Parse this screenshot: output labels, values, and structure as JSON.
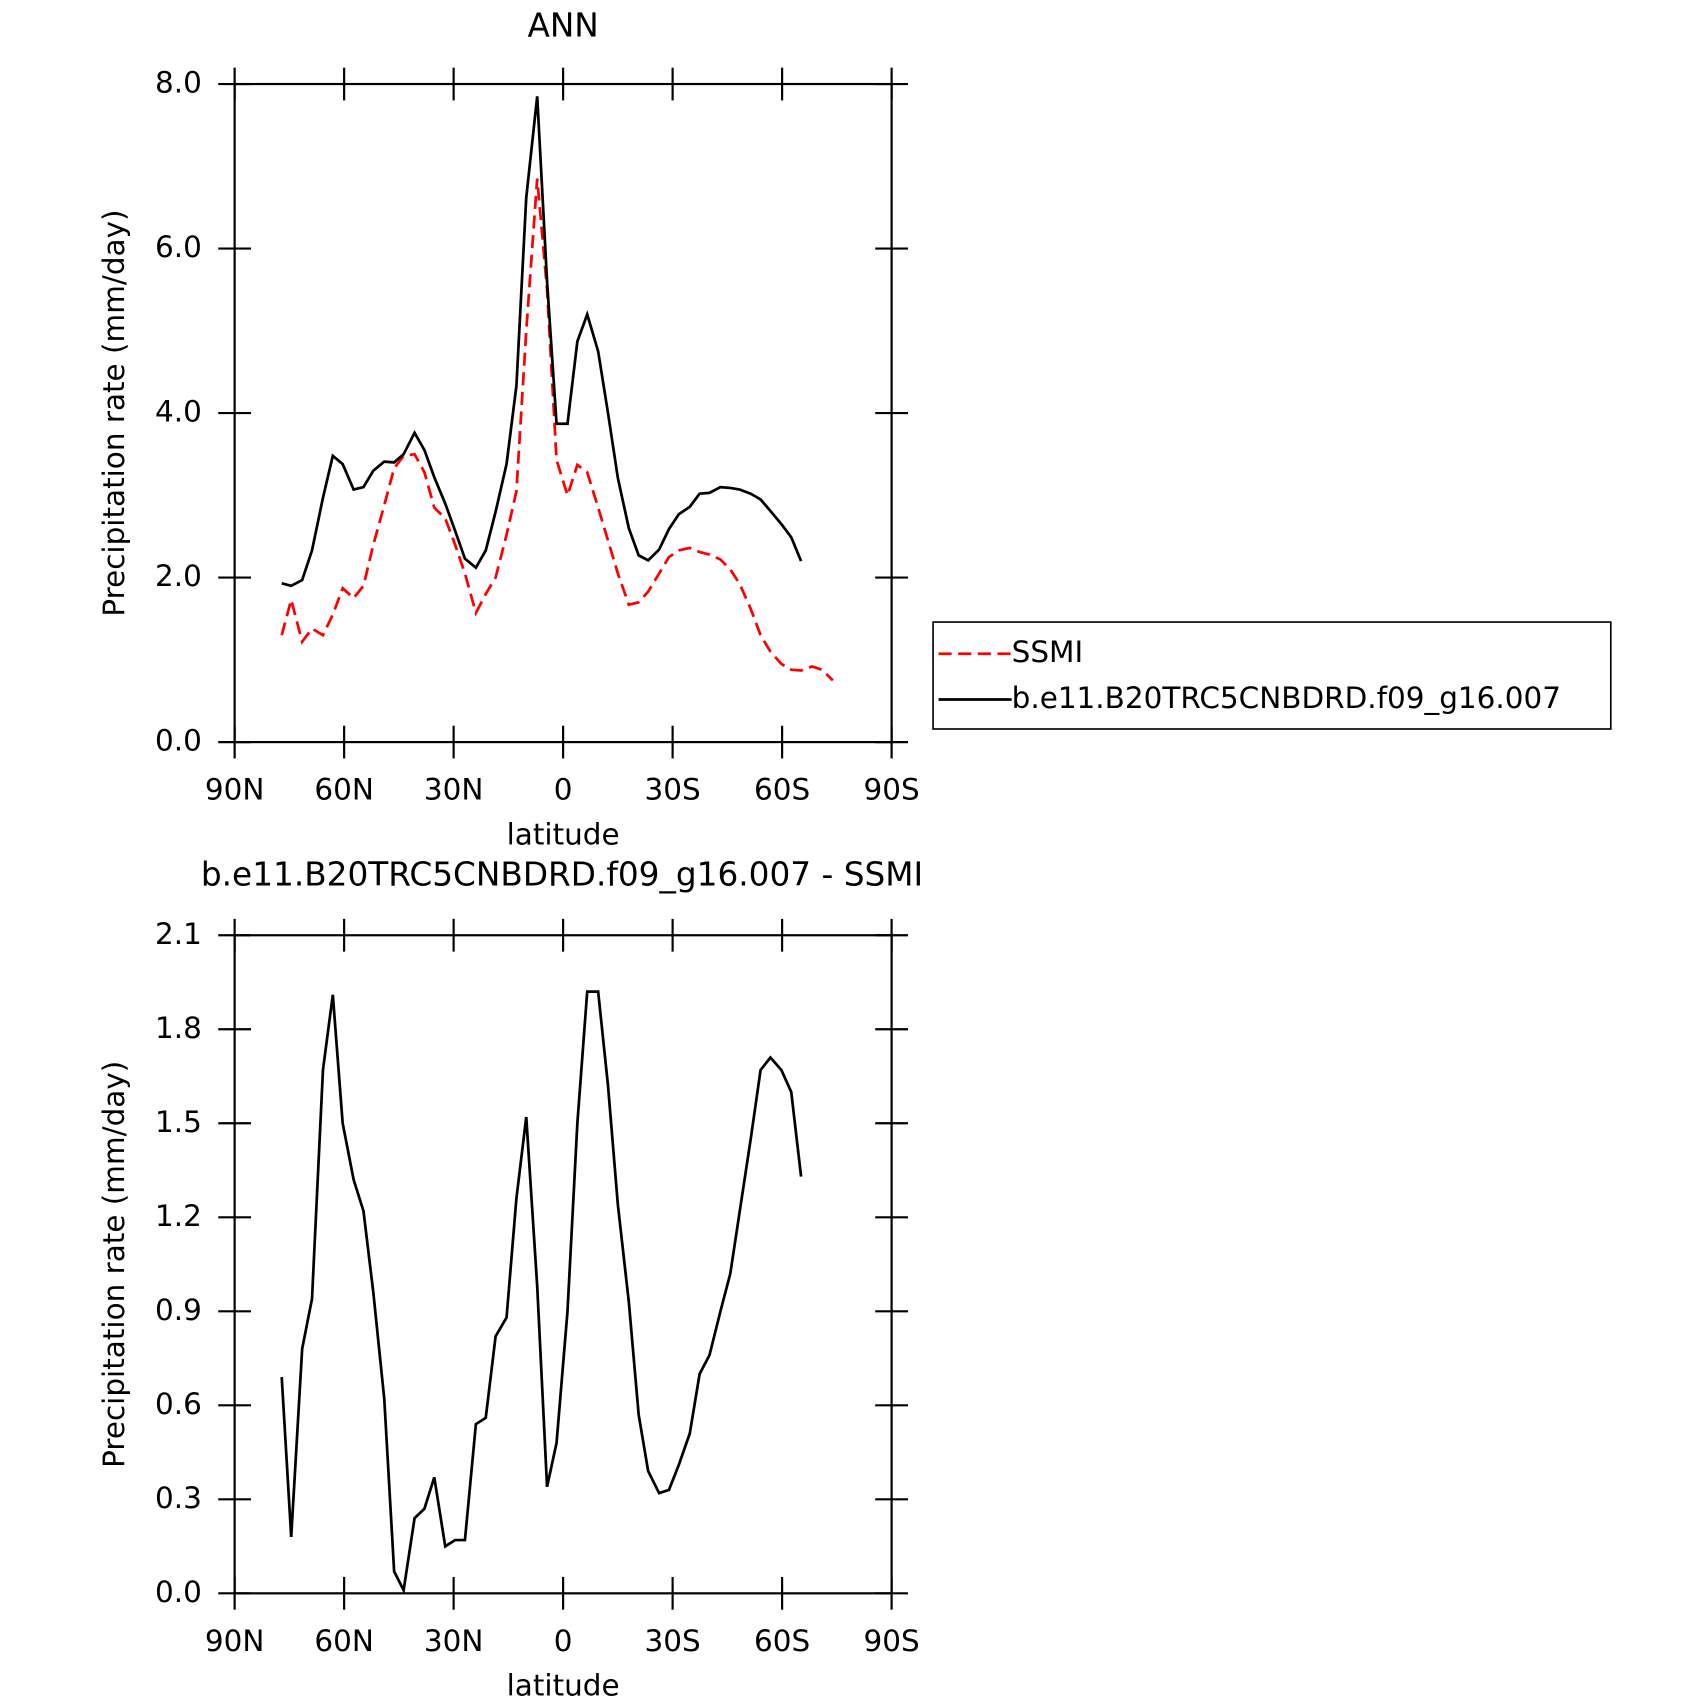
{
  "chart_data": [
    {
      "type": "line",
      "title": "ANN",
      "xlabel": "latitude",
      "ylabel": "Precipitation rate (mm/day)",
      "x": [
        77.1,
        74.5,
        71.5,
        68.8,
        65.8,
        63.1,
        60.4,
        57.4,
        54.7,
        52.0,
        49.0,
        46.3,
        43.7,
        40.7,
        38.0,
        35.3,
        32.3,
        29.6,
        26.9,
        23.9,
        21.2,
        18.5,
        15.5,
        12.8,
        10.1,
        7.1,
        4.4,
        1.8,
        -1.2,
        -3.9,
        -6.6,
        -9.6,
        -12.3,
        -15.0,
        -18.0,
        -20.7,
        -23.3,
        -26.3,
        -29.0,
        -31.7,
        -34.7,
        -37.4,
        -40.1,
        -43.1,
        -45.8,
        -48.4,
        -51.4,
        -54.1,
        -56.8,
        -59.8,
        -62.5,
        -65.2,
        -68.2,
        -70.9,
        -73.9
      ],
      "series": [
        {
          "name": "SSMI",
          "color": "#ff0000",
          "linestyle": "dashed",
          "values": [
            1.3,
            1.73,
            1.22,
            1.38,
            1.3,
            1.55,
            1.87,
            1.75,
            1.9,
            2.4,
            2.88,
            3.33,
            3.48,
            3.5,
            3.28,
            2.85,
            2.72,
            2.4,
            2.05,
            1.57,
            1.8,
            2.0,
            2.52,
            3.05,
            5.0,
            6.85,
            5.5,
            3.43,
            3.0,
            3.37,
            3.28,
            2.85,
            2.45,
            2.05,
            1.67,
            1.7,
            1.83,
            2.05,
            2.25,
            2.33,
            2.36,
            2.31,
            2.28,
            2.22,
            2.1,
            1.92,
            1.62,
            1.3,
            1.1,
            0.95,
            0.88,
            0.87,
            0.92,
            0.88,
            0.75
          ]
        },
        {
          "name": "b.e11.B20TRC5CNBDRD.f09_g16.007",
          "color": "#000000",
          "linestyle": "solid",
          "values": [
            1.93,
            1.9,
            1.97,
            2.33,
            2.97,
            3.48,
            3.38,
            3.07,
            3.1,
            3.3,
            3.41,
            3.4,
            3.5,
            3.76,
            3.55,
            3.22,
            2.9,
            2.57,
            2.23,
            2.12,
            2.33,
            2.8,
            3.38,
            4.33,
            6.62,
            7.85,
            5.6,
            3.87,
            3.87,
            4.87,
            5.2,
            4.75,
            4.0,
            3.21,
            2.6,
            2.27,
            2.21,
            2.34,
            2.59,
            2.77,
            2.86,
            3.02,
            3.03,
            3.1,
            3.09,
            3.07,
            3.02,
            2.95,
            2.81,
            2.65,
            2.49,
            2.2,
            null,
            null,
            null
          ]
        }
      ],
      "xlim": [
        90,
        -90
      ],
      "xticks": [
        {
          "value": 90,
          "label": "90N"
        },
        {
          "value": 60,
          "label": "60N"
        },
        {
          "value": 30,
          "label": "30N"
        },
        0,
        {
          "value": -30,
          "label": "30S"
        },
        {
          "value": -60,
          "label": "60S"
        },
        {
          "value": -90,
          "label": "90S"
        }
      ],
      "ylim": [
        0,
        8
      ],
      "yticks": [
        {
          "value": 0,
          "label": "0.0"
        },
        {
          "value": 2,
          "label": "2.0"
        },
        {
          "value": 4,
          "label": "4.0"
        },
        {
          "value": 6,
          "label": "6.0"
        },
        {
          "value": 8,
          "label": "8.0"
        }
      ],
      "legend": "right"
    },
    {
      "type": "line",
      "title": "b.e11.B20TRC5CNBDRD.f09_g16.007 - SSMI",
      "xlabel": "latitude",
      "ylabel": "Precipitation rate (mm/day)",
      "x": [
        77.1,
        74.5,
        71.5,
        68.8,
        65.8,
        63.1,
        60.4,
        57.4,
        54.7,
        52.0,
        49.0,
        46.3,
        43.7,
        40.7,
        38.0,
        35.3,
        32.3,
        29.6,
        26.9,
        23.9,
        21.2,
        18.5,
        15.5,
        12.8,
        10.1,
        7.1,
        4.4,
        1.8,
        -1.2,
        -3.9,
        -6.6,
        -9.6,
        -12.3,
        -15.0,
        -18.0,
        -20.7,
        -23.3,
        -26.3,
        -29.0,
        -31.7,
        -34.7,
        -37.4,
        -40.1,
        -43.1,
        -45.8,
        -48.4,
        -51.4,
        -54.1,
        -56.8,
        -59.8,
        -62.5,
        -65.2
      ],
      "series": [
        {
          "color": "#000000",
          "linestyle": "solid",
          "values": [
            0.69,
            0.18,
            0.78,
            0.94,
            1.67,
            1.91,
            1.5,
            1.32,
            1.22,
            0.96,
            0.62,
            0.07,
            0.01,
            0.24,
            0.27,
            0.37,
            0.15,
            0.17,
            0.17,
            0.54,
            0.56,
            0.82,
            0.88,
            1.26,
            1.52,
            0.98,
            0.34,
            0.48,
            0.9,
            1.5,
            1.92,
            1.92,
            1.62,
            1.24,
            0.93,
            0.57,
            0.39,
            0.32,
            0.33,
            0.41,
            0.51,
            0.7,
            0.76,
            0.9,
            1.02,
            1.22,
            1.45,
            1.67,
            1.71,
            1.67,
            1.6,
            1.33
          ]
        }
      ],
      "xlim": [
        90,
        -90
      ],
      "xticks": [
        {
          "value": 90,
          "label": "90N"
        },
        {
          "value": 60,
          "label": "60N"
        },
        {
          "value": 30,
          "label": "30N"
        },
        0,
        {
          "value": -30,
          "label": "30S"
        },
        {
          "value": -60,
          "label": "60S"
        },
        {
          "value": -90,
          "label": "90S"
        }
      ],
      "ylim": [
        0,
        2.1
      ],
      "yticks": [
        {
          "value": 0,
          "label": "0.0"
        },
        0.3,
        0.6,
        0.9,
        1.2,
        1.5,
        1.8,
        2.1
      ]
    }
  ]
}
